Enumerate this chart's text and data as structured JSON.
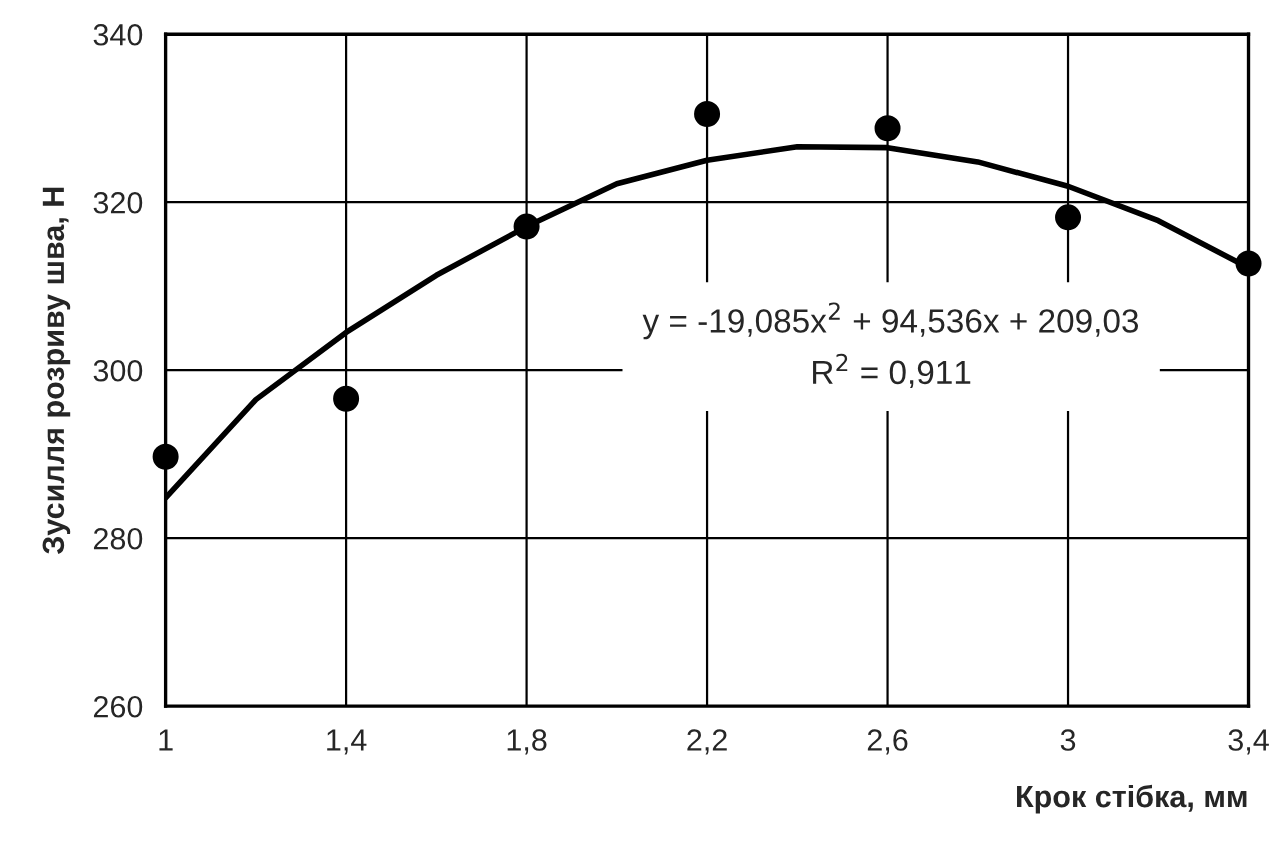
{
  "chart_data": {
    "type": "scatter",
    "xlabel": "Крок стібка, мм",
    "ylabel": "Зусилля розриву шва, Н",
    "series": [
      {
        "color": "#000000",
        "marker": "circle",
        "x": [
          1,
          1.4,
          1.8,
          2.2,
          2.6,
          3.0,
          3.4
        ],
        "values": [
          289.7,
          296.6,
          317.1,
          330.5,
          328.8,
          318.2,
          312.7
        ]
      },
      {
        "type": "line",
        "color": "#000000",
        "marker": "none",
        "line_style": "solid",
        "x": [
          1,
          1.2,
          1.4,
          1.6,
          1.8,
          2.0,
          2.2,
          2.4,
          2.6,
          2.8,
          3.0,
          3.2,
          3.4
        ],
        "values": [
          284.8,
          296.5,
          304.5,
          311.3,
          317.1,
          322.2,
          325.0,
          326.6,
          326.5,
          324.8,
          321.9,
          317.8,
          312.2
        ]
      }
    ],
    "annotations": [
      "y = -19,085x$^{2}$ + 94,536x + 209,03\nR$^{2}$ = 0,911"
    ],
    "xlim": [
      1,
      3.4
    ],
    "ylim": [
      260,
      340
    ],
    "xticks": [
      1,
      {
        "value": 1.4,
        "label": "1,4"
      },
      {
        "value": 1.8,
        "label": "1,8"
      },
      {
        "value": 2.2,
        "label": "2,2"
      },
      {
        "value": 2.6,
        "label": "2,6"
      },
      3,
      {
        "value": 3.4,
        "label": "3,4"
      }
    ],
    "yticks": [
      260,
      280,
      300,
      320,
      340
    ],
    "grid": true
  }
}
